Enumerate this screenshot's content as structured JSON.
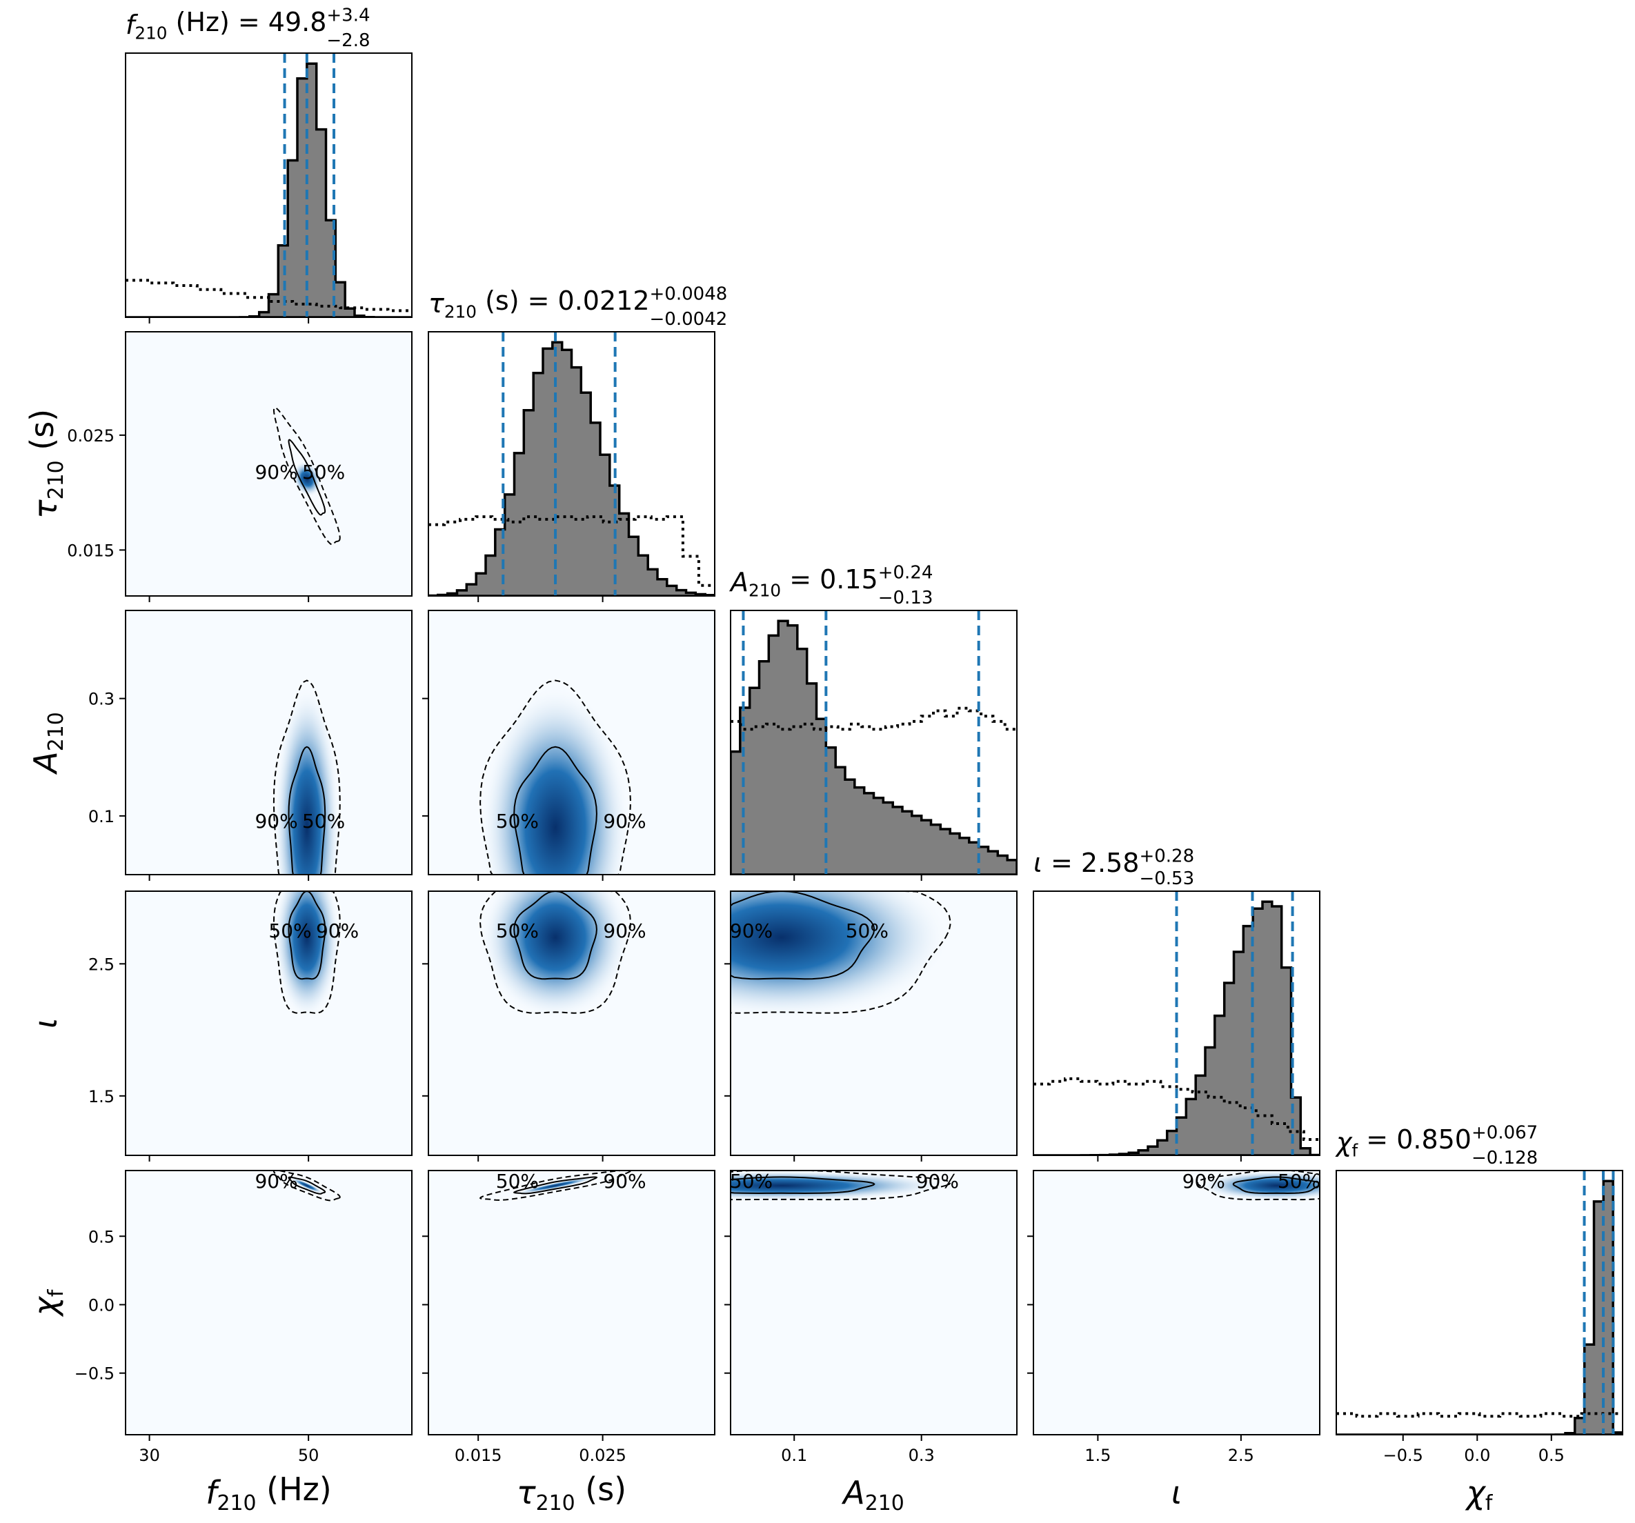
{
  "chart_data": {
    "type": "corner",
    "parameters": [
      {
        "key": "f210",
        "axis_label": "f210 (Hz)",
        "title": {
          "prefix": "f210 (Hz) = ",
          "median": "49.8",
          "plus": "+3.4",
          "minus": "−2.8"
        },
        "range": [
          27,
          63
        ],
        "ticks": [
          30,
          50
        ],
        "tick_labels": [
          "30",
          "50"
        ],
        "quantiles": [
          47,
          49.8,
          53.2
        ],
        "hist": {
          "center": 50,
          "sigma": 2.0,
          "skew": 0,
          "floor": 0
        },
        "prior": [
          0.14,
          0.13,
          0.12,
          0.105,
          0.09,
          0.075,
          0.06,
          0.05,
          0.042,
          0.036,
          0.03,
          0.025
        ]
      },
      {
        "key": "tau210",
        "axis_label": "τ210 (s)",
        "title": {
          "prefix": "τ210 (s) = ",
          "median": "0.0212",
          "plus": "+0.0048",
          "minus": "−0.0042"
        },
        "range": [
          0.011,
          0.034
        ],
        "ticks": [
          0.015,
          0.025
        ],
        "tick_labels": [
          "0.015",
          "0.025"
        ],
        "quantiles": [
          0.017,
          0.0212,
          0.026
        ],
        "hist": {
          "center": 0.0212,
          "sigma": 0.0032,
          "skew": 0.15,
          "floor": 0
        },
        "prior": [
          0.27,
          0.28,
          0.29,
          0.3,
          0.29,
          0.28,
          0.3,
          0.29,
          0.3,
          0.29,
          0.3,
          0.28,
          0.29,
          0.3,
          0.29,
          0.3,
          0.15,
          0.04
        ]
      },
      {
        "key": "A210",
        "axis_label": "A210",
        "title": {
          "prefix": "A210 = ",
          "median": "0.15",
          "plus": "+0.24",
          "minus": "−0.13"
        },
        "range": [
          0,
          0.45
        ],
        "ticks": [
          0.1,
          0.3
        ],
        "tick_labels": [
          "0.1",
          "0.3"
        ],
        "quantiles": [
          0.02,
          0.15,
          0.39
        ],
        "hist": "A210_shape",
        "prior": [
          0.58,
          0.55,
          0.56,
          0.57,
          0.55,
          0.56,
          0.57,
          0.55,
          0.56,
          0.55,
          0.57,
          0.56,
          0.55,
          0.56,
          0.57,
          0.58,
          0.6,
          0.62,
          0.6,
          0.63,
          0.62,
          0.6,
          0.58,
          0.55
        ]
      },
      {
        "key": "iota",
        "axis_label": "ι",
        "title": {
          "prefix": "ι = ",
          "median": "2.58",
          "plus": "+0.28",
          "minus": "−0.53"
        },
        "range": [
          1.05,
          3.05
        ],
        "ticks": [
          1.5,
          2.5
        ],
        "tick_labels": [
          "1.5",
          "2.5"
        ],
        "quantiles": [
          2.05,
          2.58,
          2.86
        ],
        "hist": "iota_shape",
        "prior": [
          0.27,
          0.28,
          0.29,
          0.28,
          0.27,
          0.28,
          0.27,
          0.28,
          0.26,
          0.25,
          0.24,
          0.22,
          0.2,
          0.18,
          0.15,
          0.12,
          0.09,
          0.06
        ]
      },
      {
        "key": "chif",
        "axis_label": "χf",
        "title": {
          "prefix": "χf = ",
          "median": "0.850",
          "plus": "+0.067",
          "minus": "−0.128"
        },
        "range": [
          -0.95,
          0.98
        ],
        "ticks": [
          -0.5,
          0.0,
          0.5
        ],
        "tick_labels": [
          "−0.5",
          "0.0",
          "0.5"
        ],
        "quantiles": [
          0.722,
          0.85,
          0.917
        ],
        "hist": {
          "center": 0.87,
          "sigma": 0.05,
          "skew": -0.5,
          "floor": 0
        },
        "prior": [
          0.08,
          0.07,
          0.08,
          0.07,
          0.08,
          0.07,
          0.08,
          0.07,
          0.08,
          0.07,
          0.08,
          0.07,
          0.08,
          0.08
        ]
      }
    ],
    "pairs": [
      {
        "row": 1,
        "col": 0,
        "contour_labels": [
          "90%",
          "50%"
        ]
      },
      {
        "row": 2,
        "col": 0,
        "contour_labels": [
          "90%",
          "50%"
        ]
      },
      {
        "row": 2,
        "col": 1,
        "contour_labels": [
          "50%",
          "90%"
        ]
      },
      {
        "row": 3,
        "col": 0,
        "contour_labels": [
          "50%",
          "90%"
        ]
      },
      {
        "row": 3,
        "col": 1,
        "contour_labels": [
          "50%",
          "90%"
        ]
      },
      {
        "row": 3,
        "col": 2,
        "contour_labels": [
          "90%",
          "50%"
        ]
      },
      {
        "row": 4,
        "col": 0,
        "contour_labels": [
          "90%"
        ]
      },
      {
        "row": 4,
        "col": 1,
        "contour_labels": [
          "50%",
          "90%"
        ]
      },
      {
        "row": 4,
        "col": 2,
        "contour_labels": [
          "50%",
          "90%"
        ]
      },
      {
        "row": 4,
        "col": 3,
        "contour_labels": [
          "90%",
          "50%"
        ]
      }
    ],
    "colors": {
      "hist_fill": "#808080",
      "quantile_line": "#1f77b4",
      "density_dark": "#08306b",
      "density_mid": "#2171b5",
      "density_light": "#f7fbff"
    }
  }
}
